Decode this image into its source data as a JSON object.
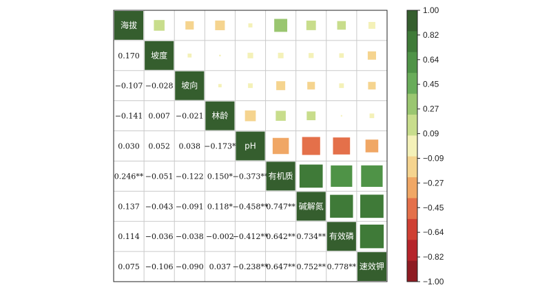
{
  "chart_data": {
    "type": "heatmap",
    "variables": [
      "海拔",
      "坡度",
      "坡向",
      "林龄",
      "pH",
      "有机质",
      "碱解氮",
      "有效磷",
      "速效钾"
    ],
    "lower_labels": [
      [],
      [
        "0.170"
      ],
      [
        "−0.107",
        "−0.028"
      ],
      [
        "−0.141",
        "0.007",
        "−0.021"
      ],
      [
        "0.030",
        "0.052",
        "0.038",
        "−0.173*"
      ],
      [
        "0.246**",
        "−0.051",
        "−0.122",
        "0.150*",
        "−0.373**"
      ],
      [
        "0.137",
        "−0.043",
        "−0.091",
        "0.118*",
        "−0.458**",
        "0.747**"
      ],
      [
        "0.114",
        "−0.036",
        "−0.038",
        "−0.002",
        "−0.412**",
        "0.642**",
        "0.734**"
      ],
      [
        "0.075",
        "−0.106",
        "−0.090",
        "0.037",
        "−0.238**",
        "0.647**",
        "0.752**",
        "0.778**"
      ]
    ],
    "matrix": [
      [
        1.0,
        0.17,
        -0.107,
        -0.141,
        0.03,
        0.246,
        0.137,
        0.114,
        0.075
      ],
      [
        0.17,
        1.0,
        -0.028,
        0.007,
        0.052,
        -0.051,
        -0.043,
        -0.036,
        -0.106
      ],
      [
        -0.107,
        -0.028,
        1.0,
        -0.021,
        0.038,
        -0.122,
        -0.091,
        -0.038,
        -0.09
      ],
      [
        -0.141,
        0.007,
        -0.021,
        1.0,
        -0.173,
        0.15,
        0.118,
        -0.002,
        0.037
      ],
      [
        0.03,
        0.052,
        0.038,
        -0.173,
        1.0,
        -0.373,
        -0.458,
        -0.412,
        -0.238
      ],
      [
        0.246,
        -0.051,
        -0.122,
        0.15,
        -0.373,
        1.0,
        0.747,
        0.642,
        0.647
      ],
      [
        0.137,
        -0.043,
        -0.091,
        0.118,
        -0.458,
        0.747,
        1.0,
        0.734,
        0.752
      ],
      [
        0.114,
        -0.036,
        -0.038,
        -0.002,
        -0.412,
        0.642,
        0.734,
        1.0,
        0.778
      ],
      [
        0.075,
        -0.106,
        -0.09,
        0.037,
        -0.238,
        0.647,
        0.752,
        0.778,
        1.0
      ]
    ],
    "colorbar": {
      "ticks": [
        "1.00",
        "0.82",
        "0.64",
        "0.45",
        "0.27",
        "0.09",
        "−0.09",
        "−0.27",
        "−0.45",
        "−0.64",
        "−0.82",
        "−1.00"
      ],
      "range": [
        -1.0,
        1.0
      ],
      "colors_top_to_bottom": [
        "#355e2e",
        "#3f7a38",
        "#4f9347",
        "#69ac5a",
        "#9ac670",
        "#c8dd8c",
        "#f4f1b8",
        "#f5d48f",
        "#f0a765",
        "#e4704a",
        "#cf4033",
        "#b5242a",
        "#8e1b22"
      ]
    },
    "diagonal_color": "#355e2e"
  }
}
